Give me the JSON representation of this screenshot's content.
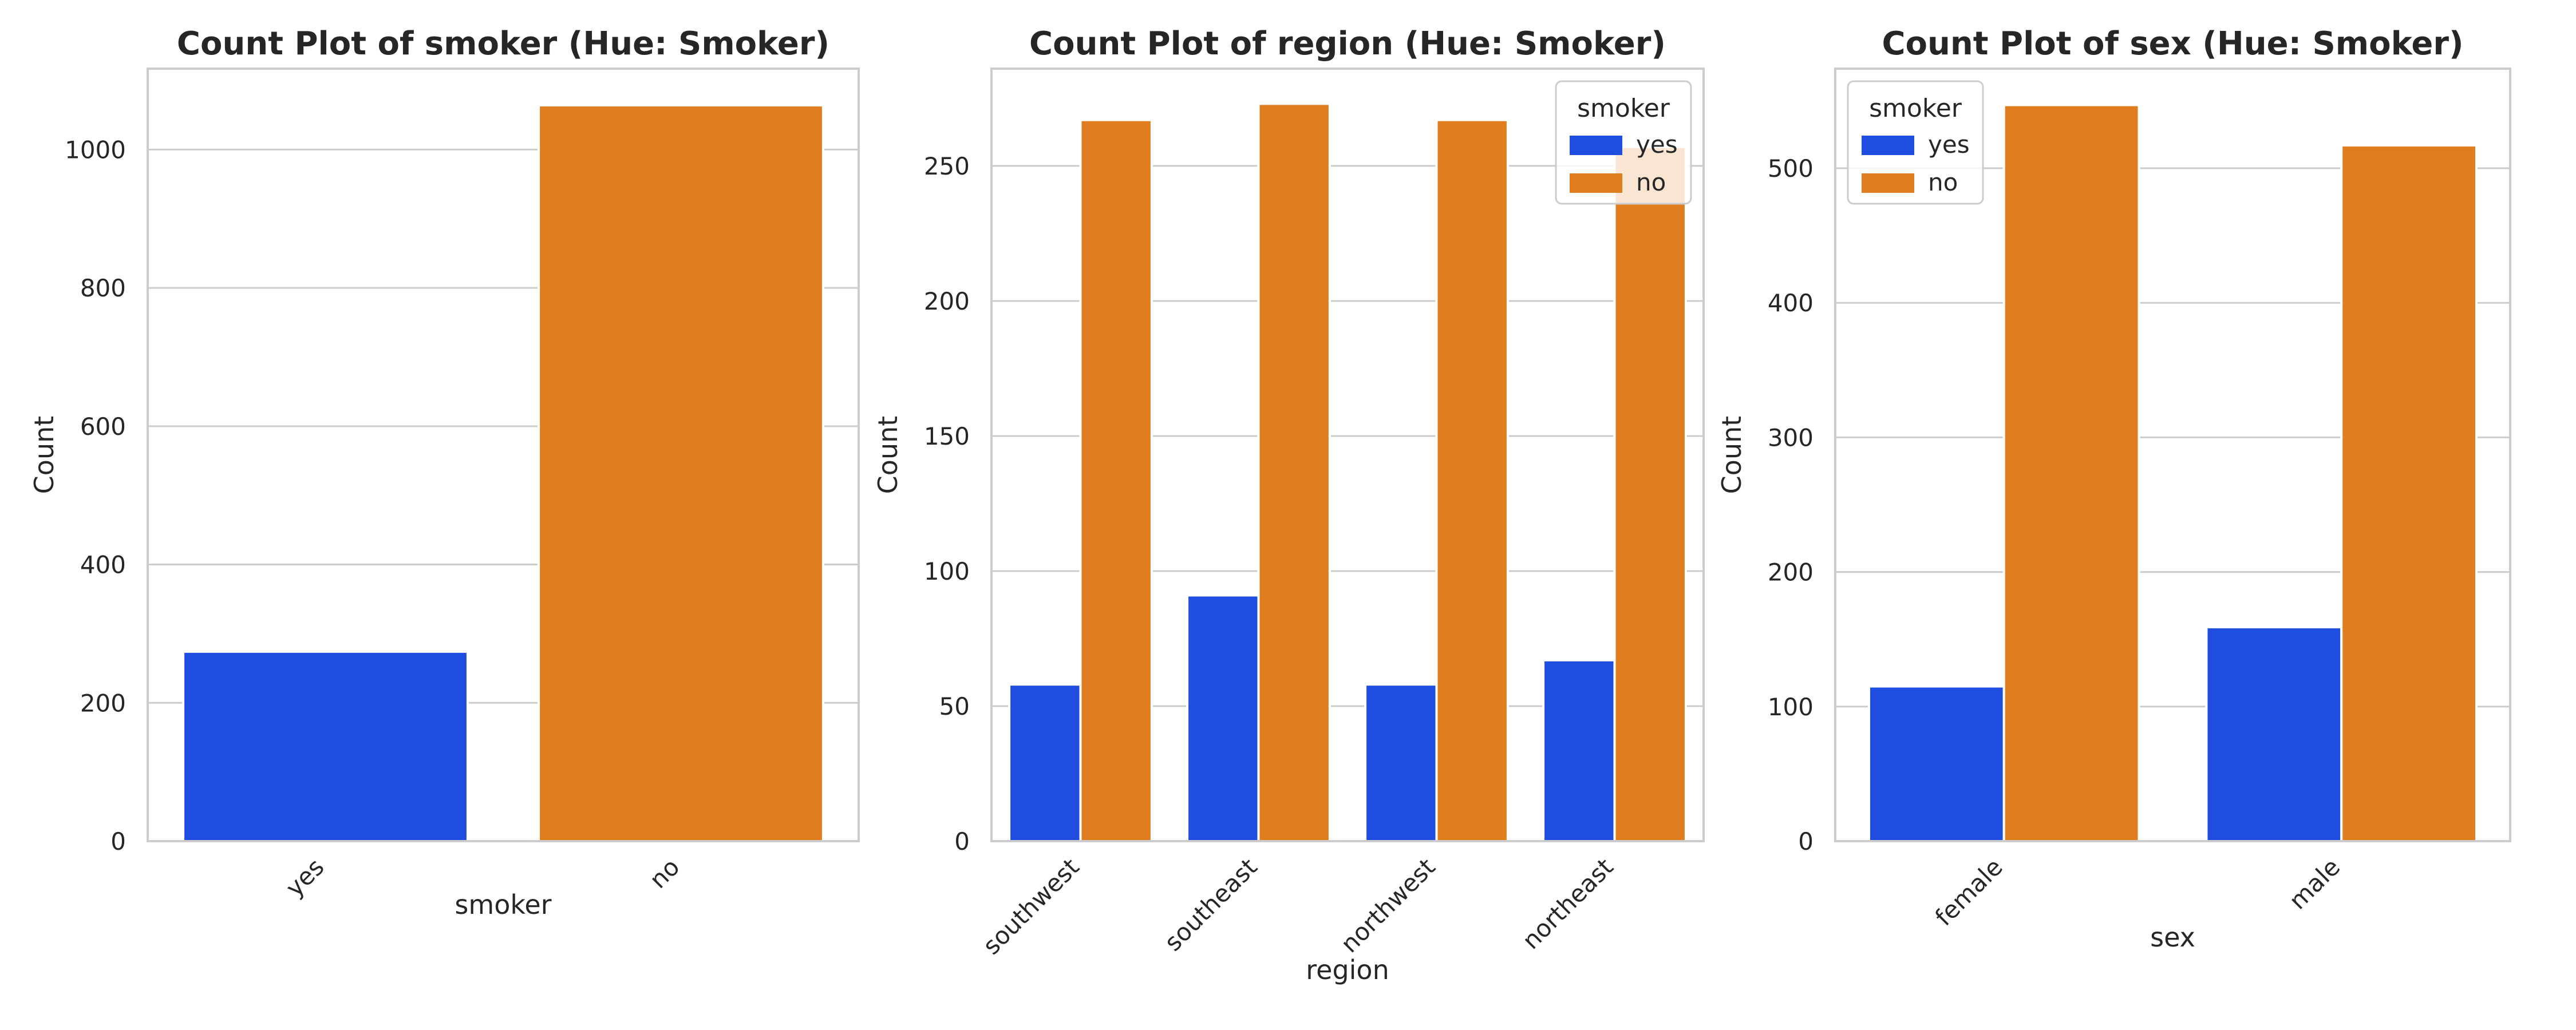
{
  "colors": {
    "yes": "#1f4de0",
    "no": "#e07d1f",
    "grid": "#cccccc",
    "frame": "#cccccc",
    "background": "#ffffff"
  },
  "chart_data": [
    {
      "type": "bar",
      "title": "Count Plot of smoker (Hue: Smoker)",
      "xlabel": "smoker",
      "ylabel": "Count",
      "categories": [
        "yes",
        "no"
      ],
      "series": [
        {
          "name": "yes",
          "color_key": "yes",
          "values": [
            274,
            null
          ]
        },
        {
          "name": "no",
          "color_key": "no",
          "values": [
            null,
            1064
          ]
        }
      ],
      "ylim": [
        0,
        1117
      ],
      "yticks": [
        0,
        200,
        400,
        600,
        800,
        1000
      ],
      "xtick_rotation": 45,
      "grid": true,
      "legend": null
    },
    {
      "type": "bar",
      "title": "Count Plot of region (Hue: Smoker)",
      "xlabel": "region",
      "ylabel": "Count",
      "categories": [
        "southwest",
        "southeast",
        "northwest",
        "northeast"
      ],
      "series": [
        {
          "name": "yes",
          "color_key": "yes",
          "values": [
            58,
            91,
            58,
            67
          ]
        },
        {
          "name": "no",
          "color_key": "no",
          "values": [
            267,
            273,
            267,
            257
          ]
        }
      ],
      "ylim": [
        0,
        286
      ],
      "yticks": [
        0,
        50,
        100,
        150,
        200,
        250
      ],
      "xtick_rotation": 45,
      "grid": true,
      "legend": {
        "title": "smoker",
        "location": "upper right",
        "entries": [
          "yes",
          "no"
        ]
      }
    },
    {
      "type": "bar",
      "title": "Count Plot of sex (Hue: Smoker)",
      "xlabel": "sex",
      "ylabel": "Count",
      "categories": [
        "female",
        "male"
      ],
      "series": [
        {
          "name": "yes",
          "color_key": "yes",
          "values": [
            115,
            159
          ]
        },
        {
          "name": "no",
          "color_key": "no",
          "values": [
            547,
            517
          ]
        }
      ],
      "ylim": [
        0,
        574
      ],
      "yticks": [
        0,
        100,
        200,
        300,
        400,
        500
      ],
      "xtick_rotation": 45,
      "grid": true,
      "legend": {
        "title": "smoker",
        "location": "upper left",
        "entries": [
          "yes",
          "no"
        ]
      }
    }
  ]
}
